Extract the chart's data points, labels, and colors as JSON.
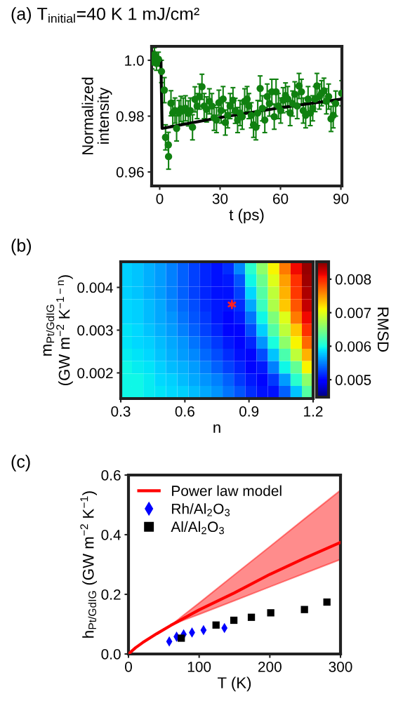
{
  "chart_data": [
    {
      "type": "scatter",
      "title": "(a) T$_{initial}$=40 K 1 mJ/cm²",
      "xlabel": "t (ps)",
      "ylabel": "Normalized\nintensity",
      "xlim": [
        -4,
        90.5
      ],
      "xticks": [
        0,
        30,
        60,
        90
      ],
      "ylim": [
        0.955,
        1.005
      ],
      "yticks": [
        {
          "value": 0.96,
          "label": "0.96"
        },
        {
          "value": 0.98,
          "label": "0.98"
        },
        {
          "value": 1.0,
          "label": "1.0"
        }
      ],
      "grid": false,
      "legend": false,
      "marker": "circle",
      "series": [
        {
          "type": "scatter",
          "color": "#108010",
          "x": [
            -3.8,
            -3.3,
            -2.6,
            -1.6,
            -0.6,
            0.9,
            2.3,
            2.9,
            4.3,
            4.4,
            5.6,
            6.5,
            7.6,
            8.4,
            9.6,
            10.5,
            11.7,
            12.8,
            14.2,
            15.2,
            16.3,
            17.5,
            18.6,
            19.8,
            21.0,
            22.1,
            23.3,
            24.7,
            25.9,
            27.0,
            28.2,
            29.4,
            30.5,
            31.5,
            32.6,
            33.8,
            35.0,
            36.4,
            37.5,
            38.7,
            39.9,
            41.0,
            42.2,
            43.4,
            44.3,
            45.5,
            46.6,
            47.8,
            48.7,
            49.9,
            51.0,
            52.2,
            53.4,
            54.5,
            55.7,
            56.9,
            57.8,
            59.0,
            60.1,
            61.3,
            62.5,
            63.6,
            64.8,
            66.0,
            67.1,
            68.3,
            69.2,
            70.4,
            71.3,
            72.5,
            73.7,
            74.8,
            76.0,
            77.2,
            78.1,
            79.3,
            80.4,
            81.6,
            82.8,
            83.9,
            85.1,
            86.2,
            87.4,
            90.4
          ],
          "values": [
            0.9994,
            1.0008,
            1.002,
            0.9989,
            1.0004,
            0.996,
            0.9893,
            0.9724,
            0.9697,
            0.9655,
            0.9846,
            0.9811,
            0.982,
            0.9756,
            0.9811,
            0.9826,
            0.982,
            0.9828,
            0.981,
            0.982,
            0.976,
            0.986,
            0.9836,
            0.987,
            0.9905,
            0.9836,
            0.9824,
            0.9853,
            0.9836,
            0.9794,
            0.9786,
            0.9848,
            0.982,
            0.9861,
            0.9777,
            0.9803,
            0.9836,
            0.9857,
            0.9819,
            0.9786,
            0.9811,
            0.9798,
            0.9853,
            0.9861,
            0.9836,
            0.9803,
            0.9769,
            0.976,
            0.9811,
            0.9899,
            0.9828,
            0.9786,
            0.987,
            0.9845,
            0.9887,
            0.9798,
            0.9887,
            0.9836,
            0.982,
            0.9857,
            0.9874,
            0.9861,
            0.9811,
            0.9845,
            0.9878,
            0.9836,
            0.9908,
            0.9887,
            0.982,
            0.9803,
            0.9861,
            0.9811,
            0.9828,
            0.9861,
            0.9908,
            0.987,
            0.9882,
            0.9891,
            0.9853,
            0.987,
            0.979,
            0.9803,
            0.9845,
            0.9882
          ],
          "errors": [
            0.0025,
            0.0025,
            0.0025,
            0.0025,
            0.0025,
            0.004,
            0.0045,
            0.0045,
            0.0045,
            0.0045,
            0.0045,
            0.0045,
            0.0045,
            0.0045,
            0.0045,
            0.0045,
            0.0045,
            0.0045,
            0.0045,
            0.0045,
            0.0045,
            0.0045,
            0.0045,
            0.0045,
            0.0045,
            0.0045,
            0.0045,
            0.0045,
            0.0045,
            0.0045,
            0.0045,
            0.0045,
            0.0045,
            0.0045,
            0.0045,
            0.0045,
            0.0045,
            0.0045,
            0.0045,
            0.0045,
            0.0045,
            0.0045,
            0.0045,
            0.0045,
            0.0045,
            0.0045,
            0.0045,
            0.0045,
            0.0045,
            0.0045,
            0.0045,
            0.0045,
            0.0045,
            0.0045,
            0.0045,
            0.0045,
            0.0045,
            0.0045,
            0.0045,
            0.0045,
            0.0045,
            0.0045,
            0.0045,
            0.0045,
            0.0045,
            0.0045,
            0.0045,
            0.0045,
            0.0045,
            0.0045,
            0.0045,
            0.0045,
            0.0045,
            0.0045,
            0.0045,
            0.0045,
            0.0045,
            0.0045,
            0.0045,
            0.0045,
            0.0045,
            0.0045,
            0.0045,
            0.0045
          ]
        },
        {
          "type": "line",
          "color": "#000000",
          "marker": "none",
          "x": [
            -4,
            0.6,
            1.2,
            30,
            60,
            90.4
          ],
          "values": [
            1.0,
            1.0,
            0.9756,
            0.9795,
            0.983,
            0.9861
          ]
        }
      ]
    },
    {
      "type": "heatmap",
      "title": "(b)",
      "xlabel": "n",
      "ylabel": "m$_{Pt/GdIG}$\n(GW m$^{−2}$ K$^{−1−n}$)",
      "clabel": "RMSD",
      "xlim": [
        0.3,
        1.2
      ],
      "xticks": [
        0.3,
        0.6,
        0.9,
        1.2
      ],
      "ylim": [
        0.0014,
        0.0046
      ],
      "yticks": [
        0.002,
        0.003,
        0.004
      ],
      "clim": [
        0.00448,
        0.00852
      ],
      "cticks": [
        0.005,
        0.006,
        0.007,
        0.008
      ],
      "x": [
        0.326,
        0.379,
        0.432,
        0.485,
        0.538,
        0.591,
        0.644,
        0.697,
        0.75,
        0.803,
        0.856,
        0.909,
        0.962,
        1.015,
        1.068,
        1.121,
        1.174
      ],
      "y": [
        0.00445,
        0.00416,
        0.00387,
        0.00358,
        0.00329,
        0.003,
        0.00271,
        0.00242,
        0.00213,
        0.00184,
        0.00155
      ],
      "cells": [
        [
          0.00581,
          0.00577,
          0.00569,
          0.00561,
          0.00549,
          0.00537,
          0.00525,
          0.00513,
          0.00505,
          0.00517,
          0.00553,
          0.0061,
          0.00658,
          0.0071,
          0.00763,
          0.00812,
          0.00844
        ],
        [
          0.00581,
          0.00577,
          0.00569,
          0.00561,
          0.00549,
          0.00537,
          0.00525,
          0.00513,
          0.00505,
          0.00509,
          0.00533,
          0.00597,
          0.00642,
          0.00698,
          0.00747,
          0.00795,
          0.0084
        ],
        [
          0.00581,
          0.00577,
          0.00569,
          0.00561,
          0.00549,
          0.00537,
          0.00525,
          0.00513,
          0.00505,
          0.00505,
          0.00525,
          0.00585,
          0.0063,
          0.00682,
          0.00739,
          0.00791,
          0.00836
        ],
        [
          0.00585,
          0.00581,
          0.00573,
          0.00565,
          0.00553,
          0.00541,
          0.00529,
          0.00517,
          0.00509,
          0.00505,
          0.00517,
          0.00565,
          0.00618,
          0.00674,
          0.0073,
          0.00779,
          0.00828
        ],
        [
          0.00585,
          0.00581,
          0.00573,
          0.00565,
          0.00557,
          0.00545,
          0.00533,
          0.00521,
          0.00509,
          0.00501,
          0.00509,
          0.00545,
          0.00597,
          0.0065,
          0.00698,
          0.00763,
          0.00812
        ],
        [
          0.00589,
          0.00585,
          0.00577,
          0.00569,
          0.00561,
          0.00549,
          0.00537,
          0.00525,
          0.00513,
          0.00501,
          0.00501,
          0.00529,
          0.00581,
          0.0063,
          0.00682,
          0.0073,
          0.00795
        ],
        [
          0.00589,
          0.00585,
          0.00581,
          0.00573,
          0.00565,
          0.00557,
          0.00545,
          0.00533,
          0.00521,
          0.00509,
          0.00501,
          0.00513,
          0.00557,
          0.00602,
          0.00658,
          0.0071,
          0.00771
        ],
        [
          0.00593,
          0.00589,
          0.00585,
          0.00577,
          0.00569,
          0.00561,
          0.00553,
          0.00541,
          0.00529,
          0.00517,
          0.00505,
          0.00501,
          0.00529,
          0.00577,
          0.00626,
          0.00682,
          0.00739
        ],
        [
          0.00597,
          0.00593,
          0.00589,
          0.00581,
          0.00573,
          0.00569,
          0.00561,
          0.00549,
          0.00537,
          0.00525,
          0.00513,
          0.00501,
          0.00509,
          0.00549,
          0.00597,
          0.00638,
          0.0071
        ],
        [
          0.00597,
          0.00597,
          0.00593,
          0.00585,
          0.00581,
          0.00573,
          0.00565,
          0.00557,
          0.00549,
          0.00537,
          0.00521,
          0.00509,
          0.00501,
          0.00521,
          0.00561,
          0.0061,
          0.00658
        ],
        [
          0.00597,
          0.00597,
          0.00593,
          0.00589,
          0.00585,
          0.00581,
          0.00573,
          0.00565,
          0.00557,
          0.00545,
          0.00533,
          0.00517,
          0.00505,
          0.00505,
          0.00537,
          0.00577,
          0.0063
        ]
      ],
      "series": [
        {
          "type": "scatter",
          "color": "#ff2020",
          "marker": "cross",
          "x": [
            0.82
          ],
          "values": [
            0.0036
          ]
        }
      ]
    },
    {
      "type": "line",
      "title": "(c)",
      "xlabel": "T (K)",
      "ylabel": "h$_{Pt/GdIG}$ (GW m$^{−2}$ K$^{−1}$)",
      "xlim": [
        0,
        300
      ],
      "xticks": [
        0,
        100,
        200,
        300
      ],
      "ylim": [
        0,
        0.6
      ],
      "yticks": [
        {
          "value": 0,
          "label": "0.0"
        },
        {
          "value": 0.2,
          "label": "0.2"
        },
        {
          "value": 0.4,
          "label": "0.4"
        },
        {
          "value": 0.6,
          "label": "0.6"
        }
      ],
      "grid": false,
      "legend": "top left",
      "series": [
        {
          "type": "line",
          "name": "Power law model",
          "color": "#ff0000",
          "marker": "none",
          "x": [
            0,
            10,
            20,
            40,
            60,
            80,
            100,
            150,
            200,
            250,
            300
          ],
          "values": [
            0,
            0.021,
            0.038,
            0.068,
            0.096,
            0.122,
            0.148,
            0.205,
            0.267,
            0.322,
            0.374
          ],
          "lower": [
            0,
            0.021,
            0.038,
            0.068,
            0.096,
            0.115,
            0.133,
            0.179,
            0.225,
            0.271,
            0.317
          ],
          "upper": [
            0,
            0.021,
            0.038,
            0.068,
            0.096,
            0.134,
            0.171,
            0.266,
            0.36,
            0.455,
            0.549
          ]
        },
        {
          "type": "scatter",
          "name": "Rh/Al$_{2}$O$_{3}$",
          "color": "#0000ff",
          "marker": "diamond",
          "x": [
            57.7,
            68.1,
            78.1,
            89.9,
            106.2,
            135.8
          ],
          "values": [
            0.042,
            0.058,
            0.066,
            0.072,
            0.08,
            0.087
          ]
        },
        {
          "type": "scatter",
          "name": "Al/Al$_{2}$O$_{3}$",
          "color": "#000000",
          "marker": "square",
          "x": [
            74.7,
            123.9,
            149.1,
            173.9,
            201.3,
            249.0,
            280.8
          ],
          "values": [
            0.053,
            0.097,
            0.113,
            0.123,
            0.138,
            0.149,
            0.174
          ]
        }
      ]
    }
  ]
}
